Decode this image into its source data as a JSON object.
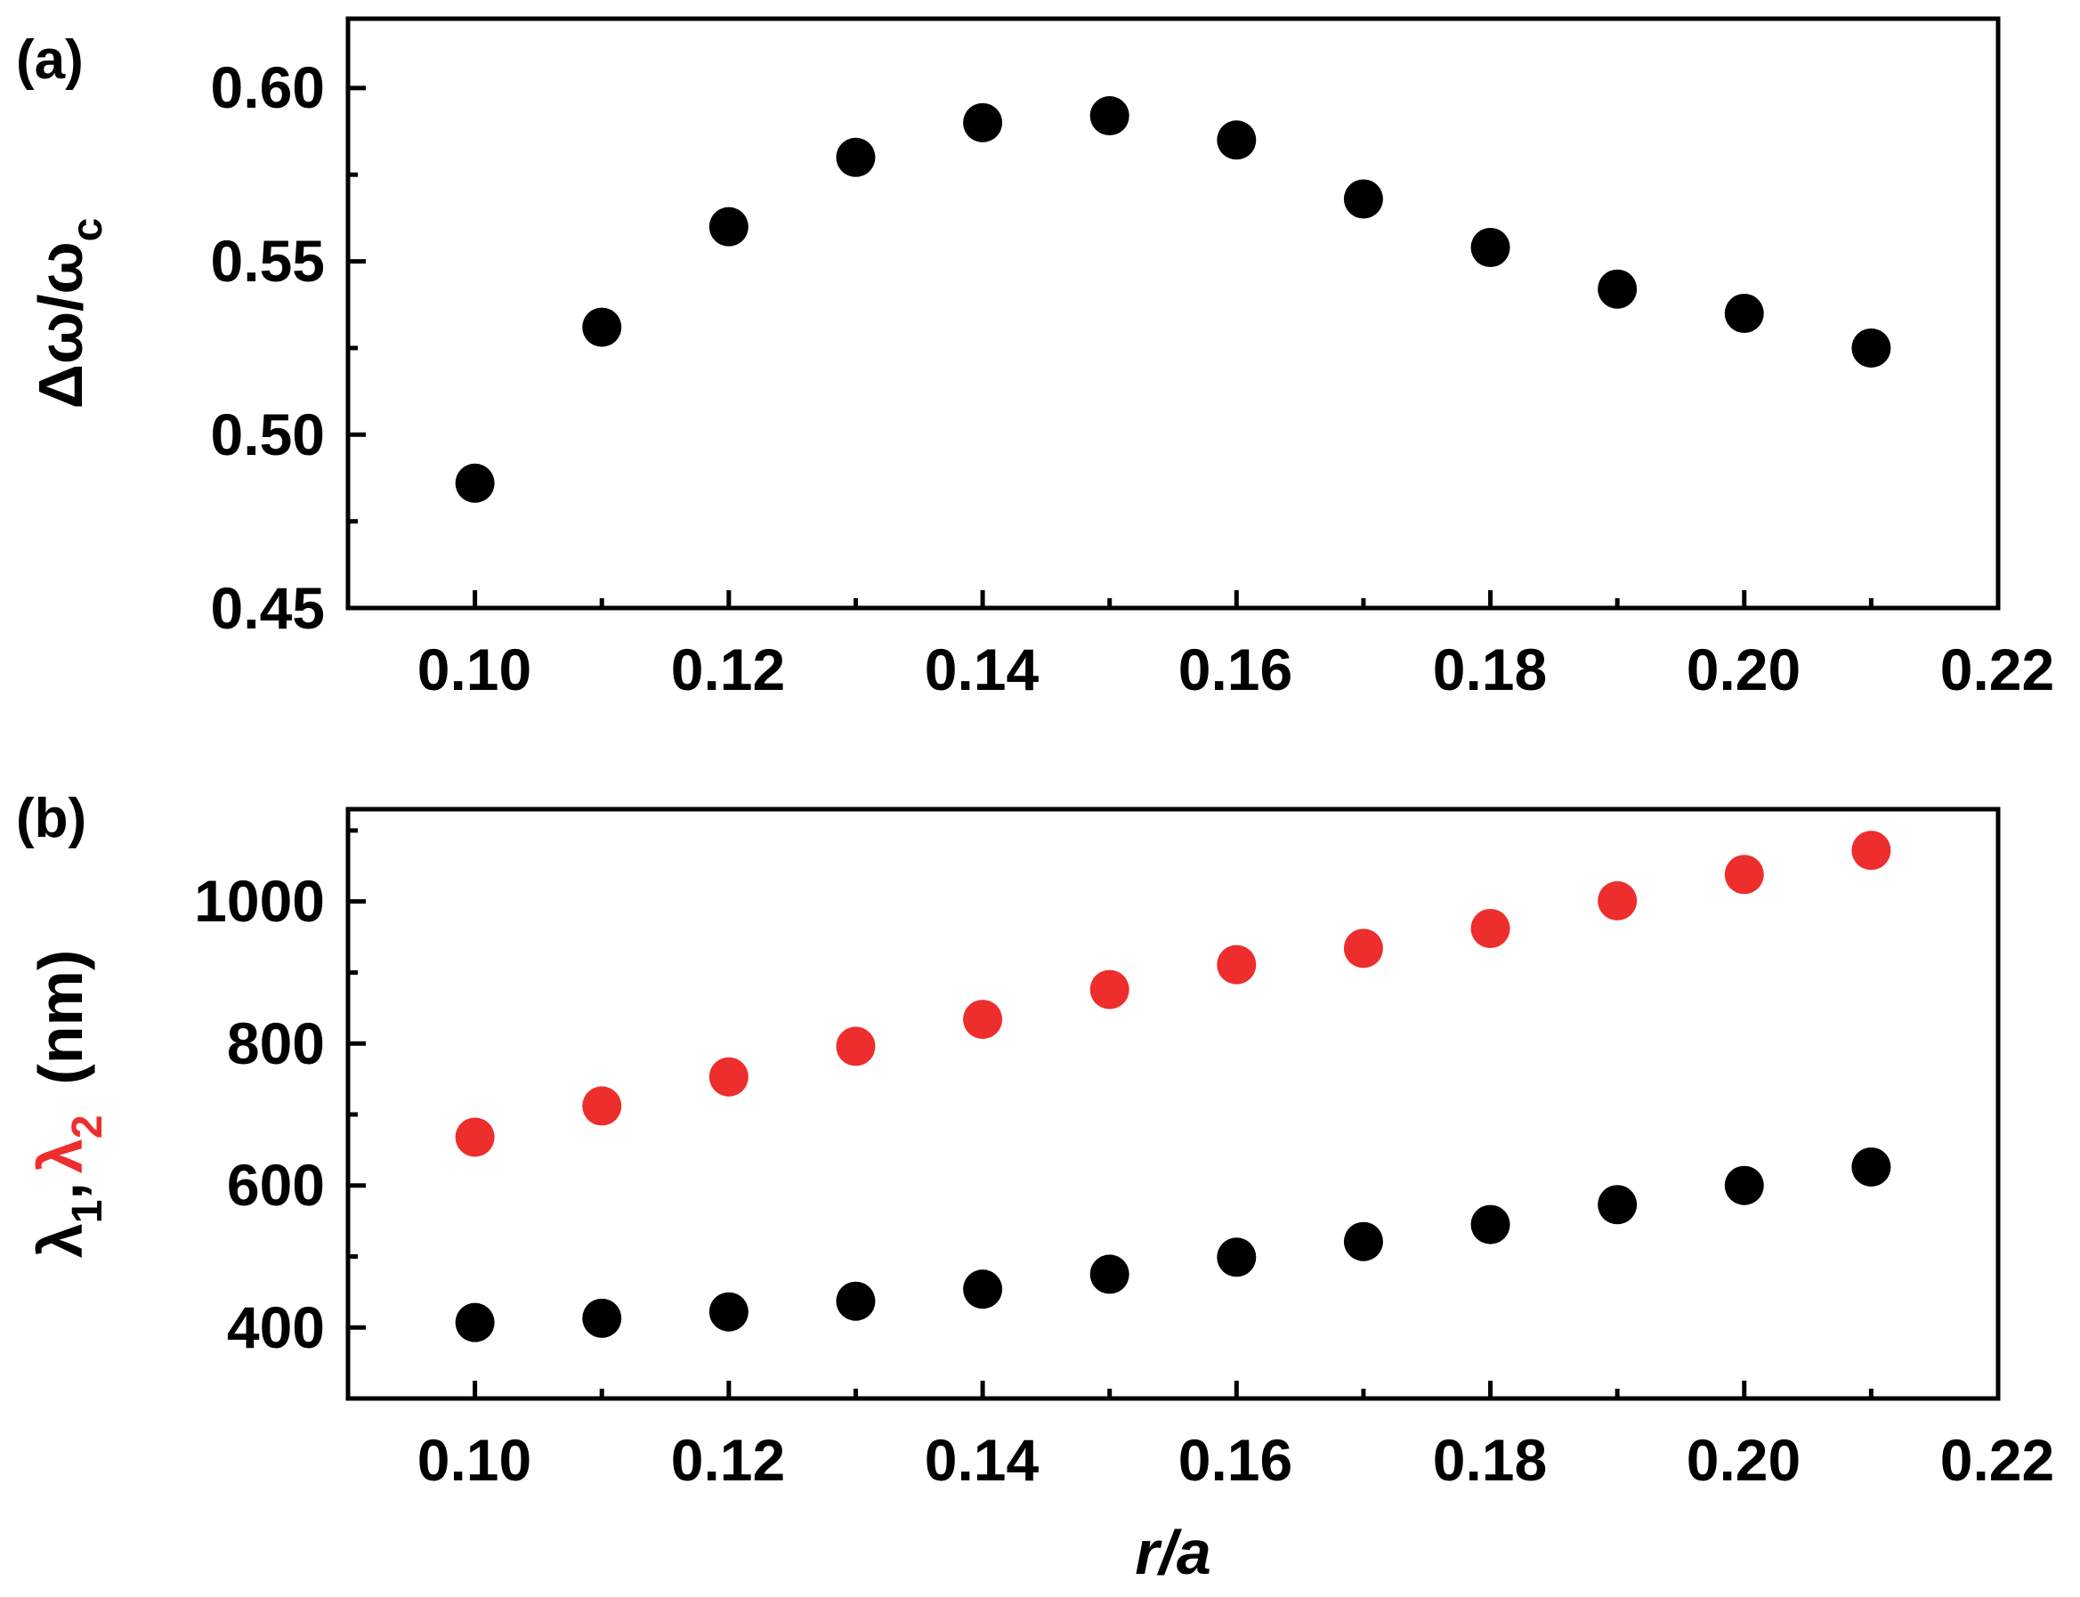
{
  "chart_data": [
    {
      "panel_label": "(a)",
      "type": "scatter",
      "x": [
        0.1,
        0.11,
        0.12,
        0.13,
        0.14,
        0.15,
        0.16,
        0.17,
        0.18,
        0.19,
        0.2,
        0.21
      ],
      "series": [
        {
          "color": "#000000",
          "values": [
            0.486,
            0.531,
            0.56,
            0.58,
            0.59,
            0.592,
            0.585,
            0.568,
            0.554,
            0.542,
            0.535,
            0.525
          ]
        }
      ],
      "xlim": [
        0.09,
        0.22
      ],
      "ylim": [
        0.45,
        0.62
      ],
      "x_ticks": [
        "0.10",
        "0.12",
        "0.14",
        "0.16",
        "0.18",
        "0.20",
        "0.22"
      ],
      "y_ticks": [
        "0.45",
        "0.50",
        "0.55",
        "0.60"
      ],
      "ylabel": {
        "main": "Δω/ω",
        "sub": "c"
      },
      "xlabel": "",
      "grid": false
    },
    {
      "panel_label": "(b)",
      "type": "scatter",
      "x": [
        0.1,
        0.11,
        0.12,
        0.13,
        0.14,
        0.15,
        0.16,
        0.17,
        0.18,
        0.19,
        0.2,
        0.21
      ],
      "series": [
        {
          "color": "#000000",
          "values": [
            407,
            413,
            422,
            437,
            454,
            475,
            499,
            521,
            545,
            573,
            600,
            626
          ]
        },
        {
          "color": "#ee2d2d",
          "values": [
            668,
            712,
            753,
            796,
            834,
            876,
            911,
            934,
            962,
            1001,
            1038,
            1072
          ]
        }
      ],
      "xlim": [
        0.09,
        0.22
      ],
      "ylim": [
        300,
        1130
      ],
      "x_ticks": [
        "0.10",
        "0.12",
        "0.14",
        "0.16",
        "0.18",
        "0.20",
        "0.22"
      ],
      "y_ticks": [
        "400",
        "600",
        "800",
        "1000"
      ],
      "ylabel": {
        "lambda1": "λ",
        "sub1": "1",
        "comma": ",",
        "lambda2": "λ",
        "sub2": "2",
        "unit": "(nm)"
      },
      "xlabel": "r/a",
      "grid": false
    }
  ]
}
